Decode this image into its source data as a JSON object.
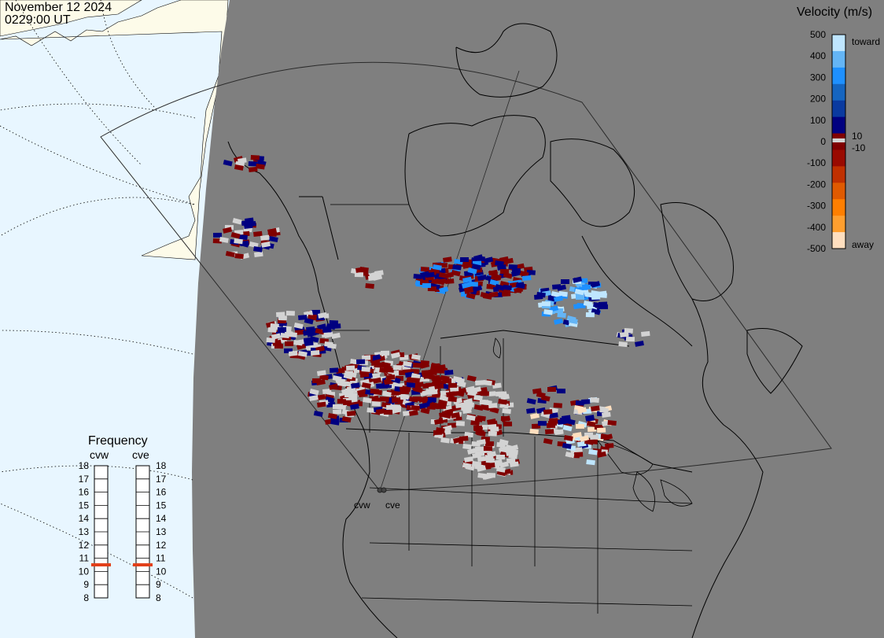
{
  "header": {
    "date": "November 12 2024",
    "time": "0229:00 UT"
  },
  "colors": {
    "ocean": "#e8f6ff",
    "land_outside": "#fdfbe9",
    "night": "#7f7f7f",
    "scatter_low": "#d3d3d3",
    "velocity_scale": [
      "#ffdfbf",
      "#ff9f2f",
      "#ff7f00",
      "#e05a00",
      "#c03000",
      "#9a0a00",
      "#800000",
      "#000080",
      "#0a3aa0",
      "#1565c0",
      "#1e90ff",
      "#64b5f6",
      "#bfe6ff"
    ]
  },
  "legend": {
    "title": "Velocity (m/s)",
    "ticks": [
      "500",
      "400",
      "300",
      "200",
      "100",
      "0",
      "-100",
      "-200",
      "-300",
      "-400",
      "-500"
    ],
    "toward_label": "toward",
    "away_label": "away",
    "small_pos": "10",
    "small_neg": "-10"
  },
  "frequency_panel": {
    "title": "Frequency",
    "radars": [
      {
        "name": "cvw",
        "value_mhz": 10.5
      },
      {
        "name": "cve",
        "value_mhz": 10.5
      }
    ],
    "ticks": [
      "18",
      "17",
      "16",
      "15",
      "14",
      "13",
      "12",
      "11",
      "10",
      "9",
      "8"
    ],
    "range": [
      8,
      18
    ]
  },
  "stations": [
    {
      "name": "cvw"
    },
    {
      "name": "cve"
    }
  ]
}
